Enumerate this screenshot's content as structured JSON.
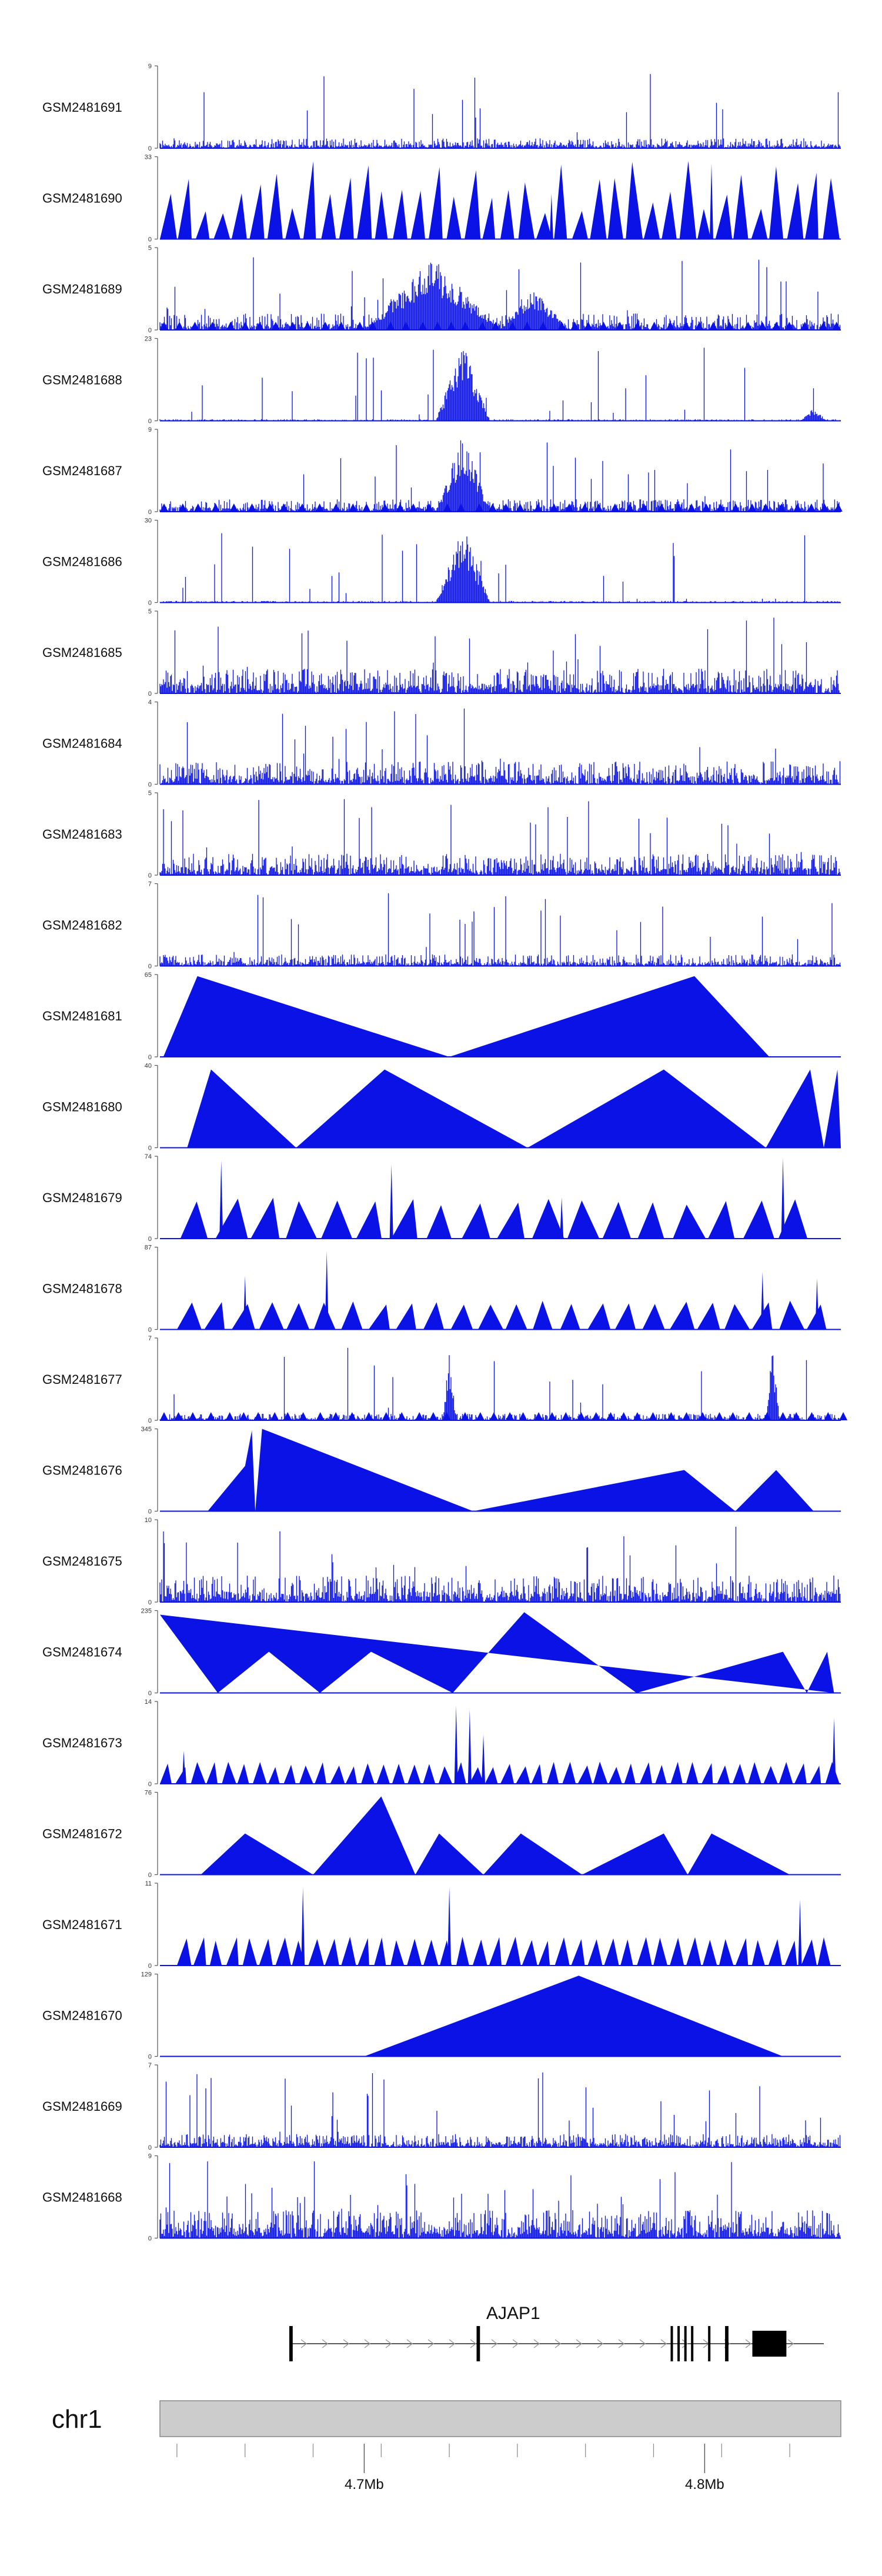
{
  "colors": {
    "track": "#0a12e6",
    "axis": "#555555",
    "ideogram_fill": "#cccccc",
    "ideogram_stroke": "#888888",
    "gene": "#222222"
  },
  "chart_data": {
    "type": "area",
    "subtype": "genome-browser-coverage-tracks",
    "chromosome": "chr1",
    "x_range_mb": [
      4.64,
      4.84
    ],
    "x_ticks": [
      {
        "value": 4.7,
        "label": "4.7Mb"
      },
      {
        "value": 4.8,
        "label": "4.8Mb"
      }
    ],
    "tracks": [
      {
        "name": "GSM2481691",
        "ymax": 9,
        "ymax_label": "9",
        "mode": "dense",
        "level": 0.12,
        "seed": 11,
        "peaks": []
      },
      {
        "name": "GSM2481690",
        "ymax": 33,
        "ymax_label": "33",
        "mode": "triangles",
        "n": 38,
        "h": [
          0.3,
          0.95
        ],
        "seed": 12,
        "spikes": [
          [
            4.802,
            0.92
          ],
          [
            4.755,
            0.55
          ]
        ]
      },
      {
        "name": "GSM2481689",
        "ymax": 5,
        "ymax_label": "5",
        "mode": "dense",
        "level": 0.2,
        "seed": 13,
        "tri": true,
        "peaks": [
          [
            4.72,
            0.9,
            0.02
          ],
          [
            4.75,
            0.5,
            0.01
          ]
        ]
      },
      {
        "name": "GSM2481688",
        "ymax": 23,
        "ymax_label": "23",
        "mode": "dense",
        "level": 0.02,
        "seed": 14,
        "peaks": [
          [
            4.729,
            0.95,
            0.008
          ],
          [
            4.832,
            0.15,
            0.004
          ]
        ]
      },
      {
        "name": "GSM2481687",
        "ymax": 9,
        "ymax_label": "9",
        "mode": "dense",
        "level": 0.15,
        "seed": 15,
        "tri": true,
        "peaks": [
          [
            4.729,
            0.95,
            0.008
          ]
        ]
      },
      {
        "name": "GSM2481686",
        "ymax": 30,
        "ymax_label": "30",
        "mode": "dense",
        "level": 0.02,
        "seed": 16,
        "peaks": [
          [
            4.729,
            0.95,
            0.008
          ]
        ]
      },
      {
        "name": "GSM2481685",
        "ymax": 5,
        "ymax_label": "5",
        "mode": "dense",
        "level": 0.3,
        "seed": 17,
        "peaks": []
      },
      {
        "name": "GSM2481684",
        "ymax": 4,
        "ymax_label": "4",
        "mode": "dense",
        "level": 0.28,
        "seed": 18,
        "peaks": []
      },
      {
        "name": "GSM2481683",
        "ymax": 5,
        "ymax_label": "5",
        "mode": "dense",
        "level": 0.26,
        "seed": 19,
        "peaks": []
      },
      {
        "name": "GSM2481682",
        "ymax": 7,
        "ymax_label": "7",
        "mode": "dense",
        "level": 0.14,
        "seed": 20,
        "peaks": []
      },
      {
        "name": "GSM2481681",
        "ymax": 65,
        "ymax_label": "65",
        "mode": "polygon",
        "points": [
          [
            4.641,
            0
          ],
          [
            4.651,
            0.98
          ],
          [
            4.725,
            0
          ],
          [
            4.797,
            0.98
          ],
          [
            4.819,
            0
          ]
        ]
      },
      {
        "name": "GSM2481680",
        "ymax": 40,
        "ymax_label": "40",
        "mode": "polygon",
        "points": [
          [
            4.648,
            0
          ],
          [
            4.655,
            0.95
          ],
          [
            4.68,
            0
          ],
          [
            4.706,
            0.95
          ],
          [
            4.748,
            0
          ],
          [
            4.788,
            0.95
          ],
          [
            4.818,
            0
          ],
          [
            4.831,
            0.95
          ],
          [
            4.835,
            0
          ],
          [
            4.839,
            0.95
          ],
          [
            4.84,
            0
          ]
        ]
      },
      {
        "name": "GSM2481679",
        "ymax": 74,
        "ymax_label": "74",
        "mode": "triangles",
        "n": 18,
        "h": [
          0.4,
          0.5
        ],
        "x0": 4.646,
        "x1": 4.832,
        "seed": 21,
        "spikes": [
          [
            4.658,
            0.95
          ],
          [
            4.708,
            0.9
          ],
          [
            4.823,
            0.98
          ],
          [
            4.758,
            0.5
          ]
        ]
      },
      {
        "name": "GSM2481678",
        "ymax": 87,
        "ymax_label": "87",
        "mode": "triangles",
        "n": 24,
        "h": [
          0.3,
          0.35
        ],
        "x0": 4.645,
        "x1": 4.838,
        "seed": 22,
        "spikes": [
          [
            4.665,
            0.65
          ],
          [
            4.689,
            0.95
          ],
          [
            4.817,
            0.7
          ],
          [
            4.833,
            0.62
          ]
        ]
      },
      {
        "name": "GSM2481677",
        "ymax": 7,
        "ymax_label": "7",
        "mode": "dense",
        "level": 0.08,
        "seed": 23,
        "tri": true,
        "peaks": [
          [
            4.725,
            0.85,
            0.002
          ],
          [
            4.82,
            0.95,
            0.002
          ]
        ]
      },
      {
        "name": "GSM2481676",
        "ymax": 345,
        "ymax_label": "345",
        "mode": "polygon",
        "points": [
          [
            4.654,
            0
          ],
          [
            4.665,
            0.55
          ],
          [
            4.667,
            0.98
          ],
          [
            4.668,
            0
          ],
          [
            4.668,
            0
          ],
          [
            4.67,
            1.0
          ],
          [
            4.732,
            0
          ],
          [
            4.794,
            0.5
          ],
          [
            4.809,
            0
          ],
          [
            4.821,
            0.5
          ],
          [
            4.832,
            0
          ]
        ]
      },
      {
        "name": "GSM2481675",
        "ymax": 10,
        "ymax_label": "10",
        "mode": "dense",
        "level": 0.32,
        "seed": 24,
        "peaks": []
      },
      {
        "name": "GSM2481674",
        "ymax": 235,
        "ymax_label": "235",
        "mode": "polygon",
        "points": [
          [
            4.64,
            0.95
          ],
          [
            4.657,
            0
          ],
          [
            4.672,
            0.5
          ],
          [
            4.687,
            0
          ],
          [
            4.702,
            0.5
          ],
          [
            4.726,
            0
          ],
          [
            4.747,
            0.98
          ],
          [
            4.78,
            0
          ],
          [
            4.823,
            0.5
          ],
          [
            4.83,
            0
          ],
          [
            4.836,
            0.5
          ],
          [
            4.838,
            0
          ]
        ]
      },
      {
        "name": "GSM2481673",
        "ymax": 14,
        "ymax_label": "14",
        "mode": "triangles",
        "n": 44,
        "h": [
          0.2,
          0.28
        ],
        "seed": 25,
        "spikes": [
          [
            4.727,
            0.95
          ],
          [
            4.731,
            0.9
          ],
          [
            4.735,
            0.6
          ],
          [
            4.838,
            0.8
          ],
          [
            4.647,
            0.4
          ]
        ]
      },
      {
        "name": "GSM2481672",
        "ymax": 76,
        "ymax_label": "76",
        "mode": "polygon",
        "points": [
          [
            4.652,
            0
          ],
          [
            4.665,
            0.5
          ],
          [
            4.685,
            0
          ],
          [
            4.705,
            0.95
          ],
          [
            4.715,
            0
          ],
          [
            4.722,
            0.5
          ],
          [
            4.735,
            0
          ],
          [
            4.746,
            0.5
          ],
          [
            4.764,
            0
          ],
          [
            4.788,
            0.5
          ],
          [
            4.795,
            0
          ],
          [
            4.802,
            0.5
          ],
          [
            4.825,
            0
          ]
        ]
      },
      {
        "name": "GSM2481671",
        "ymax": 11,
        "ymax_label": "11",
        "mode": "triangles",
        "n": 40,
        "h": [
          0.3,
          0.35
        ],
        "x0": 4.645,
        "x1": 4.838,
        "seed": 26,
        "spikes": [
          [
            4.682,
            0.95
          ],
          [
            4.725,
            0.95
          ],
          [
            4.828,
            0.8
          ]
        ]
      },
      {
        "name": "GSM2481670",
        "ymax": 129,
        "ymax_label": "129",
        "mode": "polygon",
        "points": [
          [
            4.7,
            0
          ],
          [
            4.763,
            0.98
          ],
          [
            4.823,
            0
          ]
        ]
      },
      {
        "name": "GSM2481669",
        "ymax": 7,
        "ymax_label": "7",
        "mode": "dense",
        "level": 0.16,
        "seed": 27,
        "peaks": []
      },
      {
        "name": "GSM2481668",
        "ymax": 9,
        "ymax_label": "9",
        "mode": "dense",
        "level": 0.34,
        "seed": 28,
        "peaks": []
      }
    ],
    "gene": {
      "name": "AJAP1",
      "strand": "+",
      "start": 4.678,
      "end": 4.835,
      "exons": [
        [
          4.678,
          4.679
        ],
        [
          4.733,
          4.734
        ],
        [
          4.79,
          4.7905
        ],
        [
          4.792,
          4.7925
        ],
        [
          4.794,
          4.7945
        ],
        [
          4.796,
          4.7965
        ],
        [
          4.801,
          4.8015
        ],
        [
          4.806,
          4.807
        ],
        [
          4.814,
          4.824
        ]
      ]
    }
  }
}
